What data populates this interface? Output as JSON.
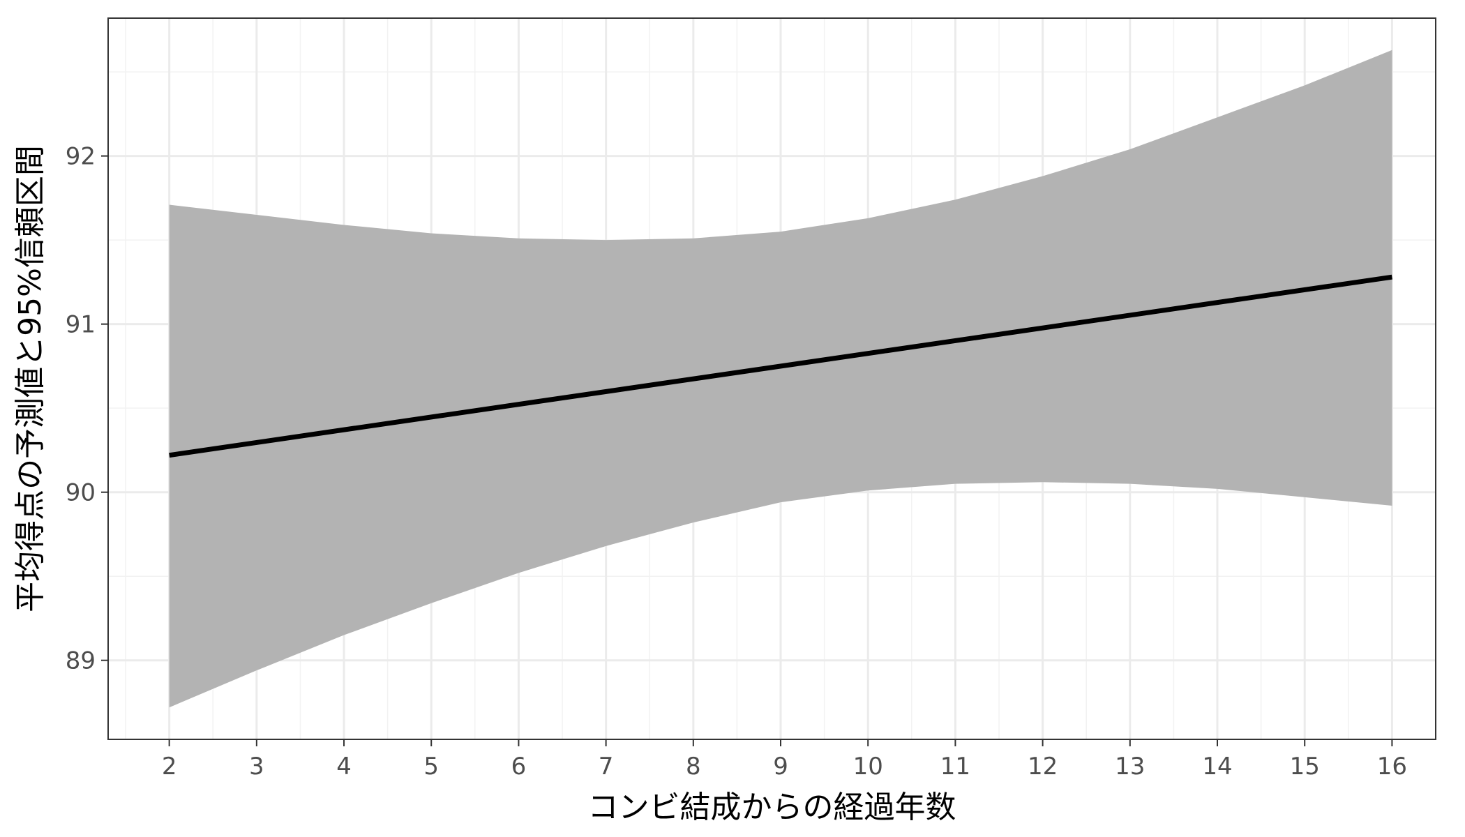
{
  "chart_data": {
    "type": "line",
    "title": "",
    "xlabel": "コンビ結成からの経過年数",
    "ylabel": "平均得点の予測値と95%信頼区間",
    "xlim": [
      1.3,
      16.5
    ],
    "ylim": [
      88.53,
      92.82
    ],
    "x_ticks": [
      2,
      3,
      4,
      5,
      6,
      7,
      8,
      9,
      10,
      11,
      12,
      13,
      14,
      15,
      16
    ],
    "y_ticks": [
      89,
      90,
      91,
      92
    ],
    "grid": true,
    "legend": "none",
    "series": [
      {
        "x": [
          2,
          16
        ],
        "y": [
          90.22,
          91.28
        ],
        "color": "#000000"
      }
    ],
    "ribbon": {
      "x": [
        2,
        3,
        4,
        5,
        6,
        7,
        8,
        9,
        10,
        11,
        12,
        13,
        14,
        15,
        16
      ],
      "lower": [
        88.72,
        88.94,
        89.15,
        89.34,
        89.52,
        89.68,
        89.82,
        89.94,
        90.01,
        90.05,
        90.06,
        90.05,
        90.02,
        89.97,
        89.92
      ],
      "upper": [
        91.71,
        91.65,
        91.59,
        91.54,
        91.51,
        91.5,
        91.51,
        91.55,
        91.63,
        91.74,
        91.88,
        92.04,
        92.23,
        92.42,
        92.63
      ],
      "color": "#b3b3b3"
    }
  }
}
